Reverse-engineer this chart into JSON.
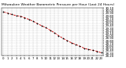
{
  "title": "Milwaukee Weather Barometric Pressure per Hour (Last 24 Hours)",
  "hours": [
    0,
    1,
    2,
    3,
    4,
    5,
    6,
    7,
    8,
    9,
    10,
    11,
    12,
    13,
    14,
    15,
    16,
    17,
    18,
    19,
    20,
    21,
    22,
    23
  ],
  "pressure": [
    29.95,
    29.9,
    29.85,
    29.8,
    29.78,
    29.72,
    29.65,
    29.58,
    29.48,
    29.4,
    29.32,
    29.22,
    29.12,
    29.0,
    28.9,
    28.8,
    28.72,
    28.65,
    28.58,
    28.5,
    28.45,
    28.42,
    28.38,
    28.32
  ],
  "line_color": "#cc0000",
  "marker_color": "#000000",
  "bg_color": "#ffffff",
  "grid_color": "#888888",
  "title_color": "#000000",
  "ylim_min": 28.2,
  "ylim_max": 30.1,
  "ytick_step": 0.1,
  "title_fontsize": 3.2,
  "tick_fontsize": 2.8,
  "xlabel_fontsize": 2.8
}
